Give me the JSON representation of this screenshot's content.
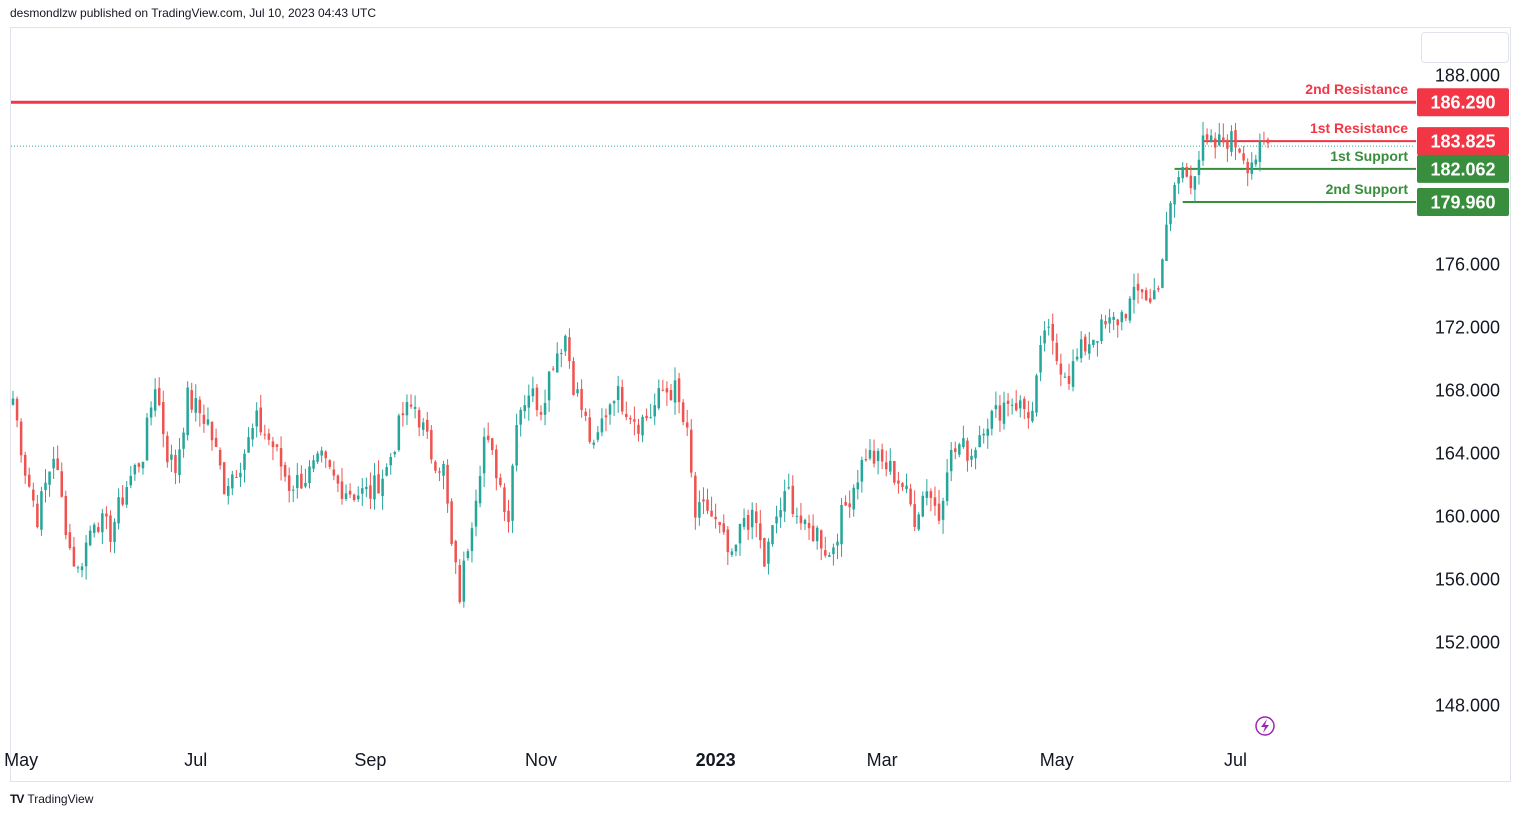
{
  "header": {
    "publisher": "desmondlzw published on TradingView.com, Jul 10, 2023 04:43 UTC"
  },
  "footer": {
    "brand": "TradingView",
    "logo": "TV"
  },
  "colors": {
    "up": "#26a69a",
    "down": "#ef5350",
    "resistance": "#f23645",
    "support": "#388e3c",
    "last": "#26a69a"
  },
  "chart_data": {
    "type": "candlestick",
    "ylim": [
      145.5,
      191.0
    ],
    "y_ticks": [
      "188.000",
      "176.000",
      "172.000",
      "168.000",
      "164.000",
      "160.000",
      "156.000",
      "152.000",
      "148.000"
    ],
    "y_tick_values": [
      188,
      176,
      172,
      168,
      164,
      160,
      156,
      152,
      148
    ],
    "x_ticks": [
      {
        "label": "May",
        "bold": false,
        "index": 2
      },
      {
        "label": "Jul",
        "bold": false,
        "index": 45
      },
      {
        "label": "Sep",
        "bold": false,
        "index": 88
      },
      {
        "label": "Nov",
        "bold": false,
        "index": 130
      },
      {
        "label": "2023",
        "bold": true,
        "index": 173
      },
      {
        "label": "Mar",
        "bold": false,
        "index": 214
      },
      {
        "label": "May",
        "bold": false,
        "index": 257
      },
      {
        "label": "Jul",
        "bold": false,
        "index": 301
      }
    ],
    "candle_count": 310,
    "last_price": 183.5,
    "anchors": [
      [
        0,
        167.5
      ],
      [
        3,
        163
      ],
      [
        6,
        160
      ],
      [
        10,
        164
      ],
      [
        14,
        158
      ],
      [
        16,
        156.5
      ],
      [
        20,
        160
      ],
      [
        24,
        159
      ],
      [
        28,
        162
      ],
      [
        32,
        164
      ],
      [
        35,
        168.5
      ],
      [
        38,
        164
      ],
      [
        40,
        163
      ],
      [
        43,
        167.5
      ],
      [
        48,
        166
      ],
      [
        52,
        162
      ],
      [
        56,
        163.5
      ],
      [
        60,
        166
      ],
      [
        64,
        164.5
      ],
      [
        68,
        162
      ],
      [
        72,
        162.5
      ],
      [
        76,
        163.5
      ],
      [
        80,
        162
      ],
      [
        84,
        161.5
      ],
      [
        88,
        161.5
      ],
      [
        92,
        163
      ],
      [
        96,
        166.5
      ],
      [
        99,
        167
      ],
      [
        103,
        164
      ],
      [
        106,
        163
      ],
      [
        108,
        158
      ],
      [
        110,
        155
      ],
      [
        113,
        160
      ],
      [
        116,
        165
      ],
      [
        119,
        163
      ],
      [
        122,
        160
      ],
      [
        124,
        166.5
      ],
      [
        127,
        168
      ],
      [
        130,
        167
      ],
      [
        133,
        170
      ],
      [
        136,
        171.5
      ],
      [
        138,
        168.5
      ],
      [
        141,
        166
      ],
      [
        143,
        164
      ],
      [
        145,
        166
      ],
      [
        148,
        168
      ],
      [
        151,
        167
      ],
      [
        154,
        166
      ],
      [
        157,
        166.5
      ],
      [
        160,
        168
      ],
      [
        163,
        168
      ],
      [
        166,
        165
      ],
      [
        168,
        160
      ],
      [
        171,
        160.5
      ],
      [
        174,
        159
      ],
      [
        177,
        157
      ],
      [
        180,
        160
      ],
      [
        183,
        159.5
      ],
      [
        185,
        157
      ],
      [
        188,
        160
      ],
      [
        191,
        161.5
      ],
      [
        195,
        159
      ],
      [
        198,
        159
      ],
      [
        201,
        157.5
      ],
      [
        204,
        160
      ],
      [
        207,
        162
      ],
      [
        210,
        164
      ],
      [
        213,
        163.5
      ],
      [
        216,
        163
      ],
      [
        219,
        162
      ],
      [
        222,
        160
      ],
      [
        225,
        162
      ],
      [
        228,
        160
      ],
      [
        230,
        163.5
      ],
      [
        233,
        164.5
      ],
      [
        236,
        164
      ],
      [
        239,
        166
      ],
      [
        242,
        166.5
      ],
      [
        245,
        167.5
      ],
      [
        248,
        167
      ],
      [
        251,
        166.5
      ],
      [
        254,
        172
      ],
      [
        257,
        170
      ],
      [
        260,
        169
      ],
      [
        263,
        170.5
      ],
      [
        266,
        171.5
      ],
      [
        269,
        172
      ],
      [
        272,
        172.5
      ],
      [
        275,
        173.5
      ],
      [
        278,
        174.5
      ],
      [
        280,
        173.5
      ],
      [
        282,
        175
      ],
      [
        284,
        178
      ],
      [
        286,
        181
      ],
      [
        288,
        182
      ],
      [
        290,
        181.5
      ],
      [
        293,
        183.5
      ],
      [
        296,
        183.5
      ],
      [
        299,
        184
      ],
      [
        302,
        183.5
      ],
      [
        304,
        182.5
      ],
      [
        309,
        183.5
      ]
    ],
    "levels": [
      {
        "name": "2nd Resistance",
        "value": 186.29,
        "label": "186.290",
        "kind": "resistance",
        "x_start_index": 0
      },
      {
        "name": "1st Resistance",
        "value": 183.825,
        "label": "183.825",
        "kind": "resistance",
        "x_start_index": 293
      },
      {
        "name": "1st Support",
        "value": 182.062,
        "label": "182.062",
        "kind": "support",
        "x_start_index": 286
      },
      {
        "name": "2nd Support",
        "value": 179.96,
        "label": "179.960",
        "kind": "support",
        "x_start_index": 288
      }
    ]
  }
}
